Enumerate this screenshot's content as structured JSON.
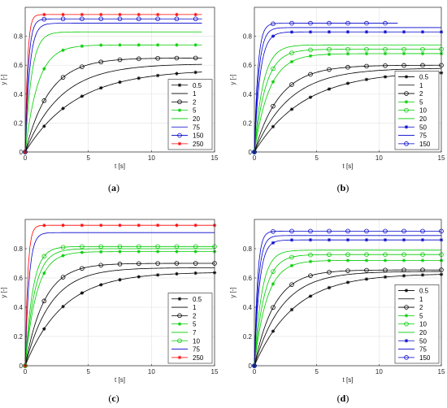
{
  "chart_data": [
    {
      "panel": "(a)",
      "type": "line",
      "xlabel": "t [s]",
      "ylabel": "y [-]",
      "xlim": [
        0,
        15
      ],
      "ylim": [
        0,
        1
      ],
      "grid": true,
      "legend_position": "bottom-right",
      "xticks": [
        "0",
        "5",
        "10",
        "15"
      ],
      "yticks": [
        "0",
        "0.2",
        "0.4",
        "0.6",
        "0.8"
      ],
      "x_end": 14,
      "series": [
        {
          "name": "0.5",
          "color": "#000000",
          "marker": "asterisk",
          "final": 0.57,
          "tau": 4.0
        },
        {
          "name": "1",
          "color": "#000000",
          "marker": "none",
          "final": 0.61,
          "tau": 2.8
        },
        {
          "name": "2",
          "color": "#000000",
          "marker": "circle",
          "final": 0.65,
          "tau": 1.9
        },
        {
          "name": "5",
          "color": "#00cc00",
          "marker": "asterisk",
          "final": 0.74,
          "tau": 1.0
        },
        {
          "name": "20",
          "color": "#00cc00",
          "marker": "none",
          "final": 0.83,
          "tau": 0.5
        },
        {
          "name": "75",
          "color": "#0000cc",
          "marker": "none",
          "final": 0.89,
          "tau": 0.35
        },
        {
          "name": "150",
          "color": "#0000cc",
          "marker": "circle",
          "final": 0.92,
          "tau": 0.25
        },
        {
          "name": "250",
          "color": "#ff0000",
          "marker": "asterisk",
          "final": 0.95,
          "tau": 0.18
        }
      ]
    },
    {
      "panel": "(b)",
      "type": "line",
      "xlabel": "t [s]",
      "ylabel": "y [-]",
      "xlim": [
        0,
        15
      ],
      "ylim": [
        0,
        1
      ],
      "grid": true,
      "legend_position": "bottom-right",
      "xticks": [
        "0",
        "5",
        "10",
        "15"
      ],
      "yticks": [
        "0",
        "0.2",
        "0.4",
        "0.6",
        "0.8"
      ],
      "x_end": 15,
      "series": [
        {
          "name": "0.5",
          "color": "#000000",
          "marker": "asterisk",
          "final": 0.56,
          "tau": 4.0
        },
        {
          "name": "1",
          "color": "#000000",
          "marker": "none",
          "final": 0.58,
          "tau": 2.8
        },
        {
          "name": "2",
          "color": "#000000",
          "marker": "circle",
          "final": 0.6,
          "tau": 2.0
        },
        {
          "name": "5",
          "color": "#00cc00",
          "marker": "asterisk",
          "final": 0.68,
          "tau": 1.2
        },
        {
          "name": "10",
          "color": "#00cc00",
          "marker": "circle",
          "final": 0.71,
          "tau": 0.9
        },
        {
          "name": "20",
          "color": "#00cc00",
          "marker": "none",
          "final": 0.74,
          "tau": 0.7
        },
        {
          "name": "50",
          "color": "#0000cc",
          "marker": "asterisk",
          "final": 0.83,
          "tau": 0.45
        },
        {
          "name": "75",
          "color": "#0000cc",
          "marker": "none",
          "final": 0.86,
          "tau": 0.35
        },
        {
          "name": "150",
          "color": "#0000cc",
          "marker": "circle",
          "final": 0.89,
          "tau": 0.28,
          "x_end": 11.5
        }
      ]
    },
    {
      "panel": "(c)",
      "type": "line",
      "xlabel": "t [s]",
      "ylabel": "y [-]",
      "xlim": [
        0,
        15
      ],
      "ylim": [
        0,
        1
      ],
      "grid": true,
      "legend_position": "bottom-right",
      "xticks": [
        "0",
        "5",
        "10",
        "15"
      ],
      "yticks": [
        "0",
        "0.2",
        "0.4",
        "0.6",
        "0.8"
      ],
      "x_end": 15,
      "series": [
        {
          "name": "0.5",
          "color": "#000000",
          "marker": "asterisk",
          "final": 0.64,
          "tau": 3.0
        },
        {
          "name": "1",
          "color": "#000000",
          "marker": "none",
          "final": 0.67,
          "tau": 2.0
        },
        {
          "name": "2",
          "color": "#000000",
          "marker": "circle",
          "final": 0.7,
          "tau": 1.5
        },
        {
          "name": "5",
          "color": "#00cc00",
          "marker": "asterisk",
          "final": 0.78,
          "tau": 0.9
        },
        {
          "name": "7",
          "color": "#00cc00",
          "marker": "none",
          "final": 0.8,
          "tau": 0.75
        },
        {
          "name": "10",
          "color": "#00cc00",
          "marker": "circle",
          "final": 0.815,
          "tau": 0.6
        },
        {
          "name": "75",
          "color": "#0000cc",
          "marker": "none",
          "final": 0.91,
          "tau": 0.3
        },
        {
          "name": "250",
          "color": "#ff0000",
          "marker": "asterisk",
          "final": 0.96,
          "tau": 0.2
        }
      ]
    },
    {
      "panel": "(d)",
      "type": "line",
      "xlabel": "t [s]",
      "ylabel": "y [-]",
      "xlim": [
        0,
        15
      ],
      "ylim": [
        0,
        1
      ],
      "grid": true,
      "legend_position": "bottom-right",
      "xticks": [
        "0",
        "5",
        "10",
        "15"
      ],
      "yticks": [
        "0",
        "0.2",
        "0.4",
        "0.6",
        "0.8"
      ],
      "x_end": 15,
      "series": [
        {
          "name": "0.5",
          "color": "#000000",
          "marker": "asterisk",
          "final": 0.63,
          "tau": 3.2
        },
        {
          "name": "1",
          "color": "#000000",
          "marker": "none",
          "final": 0.645,
          "tau": 2.2
        },
        {
          "name": "2",
          "color": "#000000",
          "marker": "circle",
          "final": 0.655,
          "tau": 1.6
        },
        {
          "name": "5",
          "color": "#00cc00",
          "marker": "asterisk",
          "final": 0.72,
          "tau": 1.0
        },
        {
          "name": "10",
          "color": "#00cc00",
          "marker": "circle",
          "final": 0.76,
          "tau": 0.8
        },
        {
          "name": "20",
          "color": "#00cc00",
          "marker": "none",
          "final": 0.79,
          "tau": 0.6
        },
        {
          "name": "50",
          "color": "#0000cc",
          "marker": "asterisk",
          "final": 0.86,
          "tau": 0.4
        },
        {
          "name": "75",
          "color": "#0000cc",
          "marker": "none",
          "final": 0.89,
          "tau": 0.32
        },
        {
          "name": "150",
          "color": "#0000cc",
          "marker": "circle",
          "final": 0.92,
          "tau": 0.25
        }
      ]
    }
  ]
}
